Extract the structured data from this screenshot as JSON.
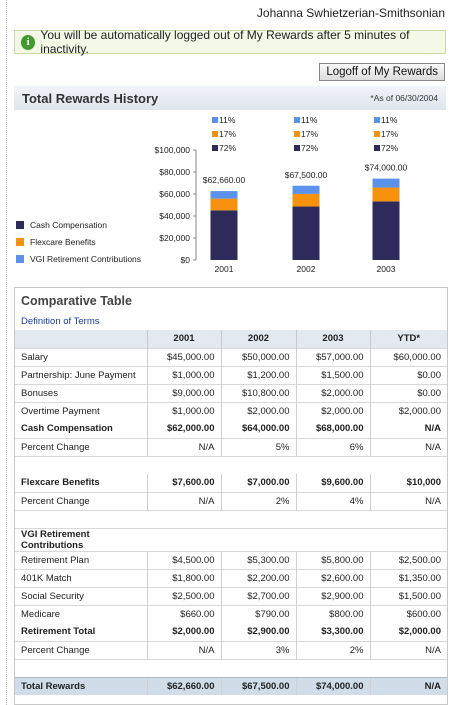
{
  "header": {
    "user_name": "Johanna Swhietzerian-Smithsonian"
  },
  "notice": {
    "icon": "info-icon",
    "text": "You will be automatically logged out of My Rewards after 5 minutes of inactivity."
  },
  "logoff_label": "Logoff of My Rewards",
  "history": {
    "title": "Total Rewards History",
    "as_of": "*As of 06/30/2004"
  },
  "legend": [
    {
      "label": "Cash Compensation",
      "color": "#2e2a5c"
    },
    {
      "label": "Flexcare Benefits",
      "color": "#f7920f"
    },
    {
      "label": "VGI Retirement Contributions",
      "color": "#5b93ec"
    }
  ],
  "chart_data": {
    "type": "bar",
    "stacked": true,
    "categories": [
      "2001",
      "2002",
      "2003"
    ],
    "totals_labels": [
      "$62,660.00",
      "$67,500.00",
      "$74,000.00"
    ],
    "series": [
      {
        "name": "Cash Compensation",
        "values": [
          45115,
          48600,
          53280
        ],
        "percent_labels": [
          "72%",
          "72%",
          "72%"
        ]
      },
      {
        "name": "Flexcare Benefits",
        "values": [
          10652,
          11475,
          12580
        ],
        "percent_labels": [
          "17%",
          "17%",
          "17%"
        ]
      },
      {
        "name": "VGI Retirement Contributions",
        "values": [
          6893,
          7425,
          8140
        ],
        "percent_labels": [
          "11%",
          "11%",
          "11%"
        ]
      }
    ],
    "y_ticks": [
      "$0",
      "$20,000",
      "$40,000",
      "$60,000",
      "$80,000",
      "$100,000"
    ],
    "ylim": [
      0,
      100000
    ],
    "colors": [
      "#2e2a5c",
      "#f7920f",
      "#5b93ec"
    ]
  },
  "comparative": {
    "title": "Comparative Table",
    "definition_link": "Definition of Terms",
    "columns": [
      "",
      "2001",
      "2002",
      "2003",
      "YTD*"
    ],
    "rows": [
      {
        "type": "row",
        "cells": [
          "Salary",
          "$45,000.00",
          "$50,000.00",
          "$57,000.00",
          "$60,000.00"
        ]
      },
      {
        "type": "row",
        "cells": [
          "Partnership: June Payment",
          "$1,000.00",
          "$1,200.00",
          "$1,500.00",
          "$0.00"
        ]
      },
      {
        "type": "row",
        "cells": [
          "Bonuses",
          "$9,000.00",
          "$10,800.00",
          "$2,000.00",
          "$0.00"
        ]
      },
      {
        "type": "row",
        "cells": [
          "Overtime Payment",
          "$1,000.00",
          "$2,000.00",
          "$2,000.00",
          "$2,000.00"
        ]
      },
      {
        "type": "bold",
        "cells": [
          "Cash Compensation",
          "$62,000.00",
          "$64,000.00",
          "$68,000.00",
          "N/A"
        ]
      },
      {
        "type": "row",
        "cells": [
          "Percent Change",
          "N/A",
          "5%",
          "6%",
          "N/A"
        ]
      },
      {
        "type": "gap",
        "cells": [
          "",
          "",
          "",
          "",
          ""
        ]
      },
      {
        "type": "bold",
        "cells": [
          "Flexcare Benefits",
          "$7,600.00",
          "$7,000.00",
          "$9,600.00",
          "$10,000"
        ]
      },
      {
        "type": "row",
        "cells": [
          "Percent Change",
          "N/A",
          "2%",
          "4%",
          "N/A"
        ]
      },
      {
        "type": "gap",
        "cells": [
          "",
          "",
          "",
          "",
          ""
        ]
      },
      {
        "type": "section",
        "cells": [
          "VGI Retirement Contributions",
          "",
          "",
          "",
          ""
        ]
      },
      {
        "type": "row",
        "cells": [
          "Retirement Plan",
          "$4,500.00",
          "$5,300.00",
          "$5,800.00",
          "$2,500.00"
        ]
      },
      {
        "type": "row",
        "cells": [
          "401K Match",
          "$1,800.00",
          "$2,200.00",
          "$2,600.00",
          "$1,350.00"
        ]
      },
      {
        "type": "row",
        "cells": [
          "Social Security",
          "$2,500.00",
          "$2,700.00",
          "$2,900.00",
          "$1,500.00"
        ]
      },
      {
        "type": "row",
        "cells": [
          "Medicare",
          "$660.00",
          "$790.00",
          "$800.00",
          "$600.00"
        ]
      },
      {
        "type": "bold",
        "cells": [
          "Retirement Total",
          "$2,000.00",
          "$2,900.00",
          "$3,300.00",
          "$2,000.00"
        ]
      },
      {
        "type": "row",
        "cells": [
          "Percent Change",
          "N/A",
          "3%",
          "2%",
          "N/A"
        ]
      },
      {
        "type": "gap",
        "cells": [
          "",
          "",
          "",
          "",
          ""
        ]
      },
      {
        "type": "total",
        "cells": [
          "Total Rewards",
          "$62,660.00",
          "$67,500.00",
          "$74,000.00",
          "N/A"
        ]
      }
    ]
  }
}
